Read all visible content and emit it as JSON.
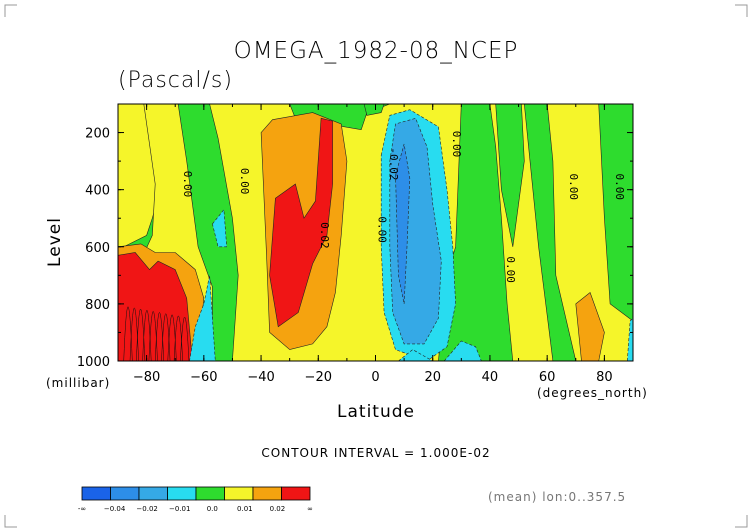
{
  "chart_data": {
    "type": "heatmap",
    "title": "OMEGA_1982-08_NCEP",
    "subtitle": "(Pascal/s)",
    "xlabel": "Latitude",
    "ylabel": "Level",
    "x_unit": "(degrees_north)",
    "y_unit": "(millibar)",
    "xlim": [
      -90,
      90
    ],
    "ylim": [
      1000,
      100
    ],
    "x_ticks": [
      -80,
      -60,
      -40,
      -20,
      0,
      20,
      40,
      60,
      80
    ],
    "y_ticks": [
      200,
      400,
      600,
      800,
      1000
    ],
    "contour_interval_text": "CONTOUR INTERVAL = 1.000E-02",
    "mean_text": "(mean) lon:0..357.5",
    "colorbar": {
      "labels": [
        "-∞",
        "−0.04",
        "−0.02",
        "−0.01",
        "0.0",
        "0.01",
        "0.02",
        "∞"
      ],
      "colors": [
        "#1a63e8",
        "#2d8ee8",
        "#35a9e6",
        "#28dcf0",
        "#2edc2e",
        "#f5f52a",
        "#f5a30f",
        "#f01515"
      ]
    },
    "contour_labels": [
      {
        "text": "0.00",
        "lat": -67,
        "lev": 380
      },
      {
        "text": "0.00",
        "lat": -47,
        "lev": 370
      },
      {
        "text": "0.02",
        "lat": -19,
        "lev": 560
      },
      {
        "text": "0.00",
        "lat": 1,
        "lev": 540
      },
      {
        "text": "-0.02",
        "lat": 5,
        "lev": 310
      },
      {
        "text": "0.00",
        "lat": 27,
        "lev": 240
      },
      {
        "text": "0.00",
        "lat": 46,
        "lev": 680
      },
      {
        "text": "0.00",
        "lat": 68,
        "lev": 390
      },
      {
        "text": "0.00",
        "lat": 84,
        "lev": 390
      }
    ],
    "regions": [
      {
        "level": "0.0",
        "color": "#2edc2e",
        "points": [
          [
            -90,
            100
          ],
          [
            90,
            100
          ],
          [
            90,
            1000
          ],
          [
            -90,
            1000
          ]
        ]
      },
      {
        "level": "0.01",
        "color": "#f5f52a",
        "points": [
          [
            -90,
            100
          ],
          [
            -76,
            100
          ],
          [
            -74,
            360
          ],
          [
            -78,
            500
          ],
          [
            -80,
            560
          ],
          [
            -88,
            600
          ],
          [
            -90,
            600
          ]
        ]
      },
      {
        "level": "0.01",
        "color": "#f5f52a",
        "points": [
          [
            -81,
            100
          ],
          [
            -69,
            100
          ],
          [
            -66,
            300
          ],
          [
            -62,
            600
          ],
          [
            -57,
            740
          ],
          [
            -57,
            1000
          ],
          [
            -90,
            1000
          ],
          [
            -90,
            720
          ],
          [
            -84,
            690
          ],
          [
            -78,
            560
          ],
          [
            -77,
            380
          ]
        ]
      },
      {
        "level": "0.01",
        "color": "#f5f52a",
        "points": [
          [
            -58,
            100
          ],
          [
            -30,
            100
          ],
          [
            -28,
            150
          ],
          [
            -5,
            190
          ],
          [
            -3,
            130
          ],
          [
            5,
            100
          ],
          [
            30,
            100
          ],
          [
            28,
            600
          ],
          [
            25,
            700
          ],
          [
            22,
            1000
          ],
          [
            -50,
            1000
          ],
          [
            -48,
            700
          ],
          [
            -50,
            500
          ],
          [
            -55,
            220
          ]
        ]
      },
      {
        "level": "0.01",
        "color": "#f5f52a",
        "points": [
          [
            40,
            100
          ],
          [
            52,
            100
          ],
          [
            57,
            600
          ],
          [
            62,
            1000
          ],
          [
            48,
            1000
          ],
          [
            46,
            800
          ],
          [
            44,
            500
          ],
          [
            42,
            250
          ]
        ]
      },
      {
        "level": "0.01",
        "color": "#f5f52a",
        "points": [
          [
            60,
            100
          ],
          [
            78,
            100
          ],
          [
            80,
            500
          ],
          [
            82,
            800
          ],
          [
            90,
            860
          ],
          [
            90,
            1000
          ],
          [
            70,
            1000
          ],
          [
            63,
            700
          ],
          [
            62,
            300
          ]
        ]
      },
      {
        "level": "0.0",
        "color": "#2edc2e",
        "points": [
          [
            -4,
            100
          ],
          [
            3,
            100
          ],
          [
            2,
            130
          ],
          [
            -3,
            140
          ]
        ]
      },
      {
        "level": "0.0",
        "color": "#2edc2e",
        "points": [
          [
            42,
            100
          ],
          [
            51,
            100
          ],
          [
            52,
            300
          ],
          [
            48,
            600
          ],
          [
            44,
            400
          ]
        ]
      },
      {
        "level": "0.02",
        "color": "#f5a30f",
        "points": [
          [
            -40,
            200
          ],
          [
            -36,
            155
          ],
          [
            -22,
            130
          ],
          [
            -12,
            170
          ],
          [
            -10,
            300
          ],
          [
            -12,
            560
          ],
          [
            -14,
            760
          ],
          [
            -17,
            880
          ],
          [
            -22,
            940
          ],
          [
            -30,
            960
          ],
          [
            -37,
            900
          ],
          [
            -38,
            650
          ],
          [
            -39,
            420
          ]
        ]
      },
      {
        "level": "0.02",
        "color": "#f5a30f",
        "points": [
          [
            -90,
            600
          ],
          [
            -82,
            590
          ],
          [
            -77,
            620
          ],
          [
            -70,
            620
          ],
          [
            -63,
            680
          ],
          [
            -60,
            780
          ],
          [
            -62,
            1000
          ],
          [
            -90,
            1000
          ]
        ]
      },
      {
        "level": "0.02",
        "color": "#f5a30f",
        "points": [
          [
            70,
            800
          ],
          [
            75,
            760
          ],
          [
            80,
            900
          ],
          [
            78,
            1000
          ],
          [
            72,
            1000
          ]
        ]
      },
      {
        "level": "∞",
        "color": "#f01515",
        "points": [
          [
            -35,
            430
          ],
          [
            -28,
            380
          ],
          [
            -25,
            500
          ],
          [
            -21,
            440
          ],
          [
            -19,
            150
          ],
          [
            -15,
            160
          ],
          [
            -15,
            380
          ],
          [
            -17,
            560
          ],
          [
            -22,
            660
          ],
          [
            -27,
            830
          ],
          [
            -34,
            880
          ],
          [
            -37,
            700
          ]
        ]
      },
      {
        "level": "∞",
        "color": "#f01515",
        "points": [
          [
            -90,
            630
          ],
          [
            -84,
            620
          ],
          [
            -79,
            680
          ],
          [
            -76,
            650
          ],
          [
            -70,
            680
          ],
          [
            -66,
            780
          ],
          [
            -64,
            1000
          ],
          [
            -90,
            1000
          ]
        ]
      },
      {
        "level": "−0.01",
        "color": "#28dcf0",
        "points": [
          [
            2,
            280
          ],
          [
            5,
            140
          ],
          [
            12,
            120
          ],
          [
            22,
            180
          ],
          [
            25,
            400
          ],
          [
            27,
            600
          ],
          [
            28,
            800
          ],
          [
            25,
            950
          ],
          [
            18,
            1000
          ],
          [
            7,
            960
          ],
          [
            3,
            830
          ],
          [
            2,
            600
          ]
        ]
      },
      {
        "level": "−0.01",
        "color": "#28dcf0",
        "points": [
          [
            -63,
            880
          ],
          [
            -60,
            800
          ],
          [
            -58,
            700
          ],
          [
            -56,
            1000
          ],
          [
            -65,
            1000
          ]
        ]
      },
      {
        "level": "−0.01",
        "color": "#28dcf0",
        "points": [
          [
            -57,
            520
          ],
          [
            -53,
            470
          ],
          [
            -52,
            600
          ],
          [
            -55,
            600
          ]
        ]
      },
      {
        "level": "−0.01",
        "color": "#28dcf0",
        "points": [
          [
            88,
            1000
          ],
          [
            89,
            860
          ],
          [
            90,
            850
          ],
          [
            90,
            1000
          ]
        ]
      },
      {
        "level": "−0.01",
        "color": "#28dcf0",
        "points": [
          [
            8,
            1000
          ],
          [
            13,
            960
          ],
          [
            20,
            1000
          ]
        ]
      },
      {
        "level": "−0.01",
        "color": "#28dcf0",
        "points": [
          [
            24,
            1000
          ],
          [
            30,
            930
          ],
          [
            35,
            950
          ],
          [
            37,
            1000
          ]
        ]
      },
      {
        "level": "−0.02",
        "color": "#35a9e6",
        "points": [
          [
            5,
            300
          ],
          [
            7,
            170
          ],
          [
            14,
            150
          ],
          [
            18,
            250
          ],
          [
            20,
            450
          ],
          [
            23,
            650
          ],
          [
            22,
            850
          ],
          [
            17,
            940
          ],
          [
            10,
            940
          ],
          [
            6,
            830
          ],
          [
            5,
            600
          ]
        ]
      },
      {
        "level": "−0.04",
        "color": "#2d8ee8",
        "points": [
          [
            7,
            350
          ],
          [
            10,
            240
          ],
          [
            12,
            360
          ],
          [
            11,
            600
          ],
          [
            10,
            800
          ],
          [
            8,
            700
          ]
        ]
      }
    ]
  }
}
